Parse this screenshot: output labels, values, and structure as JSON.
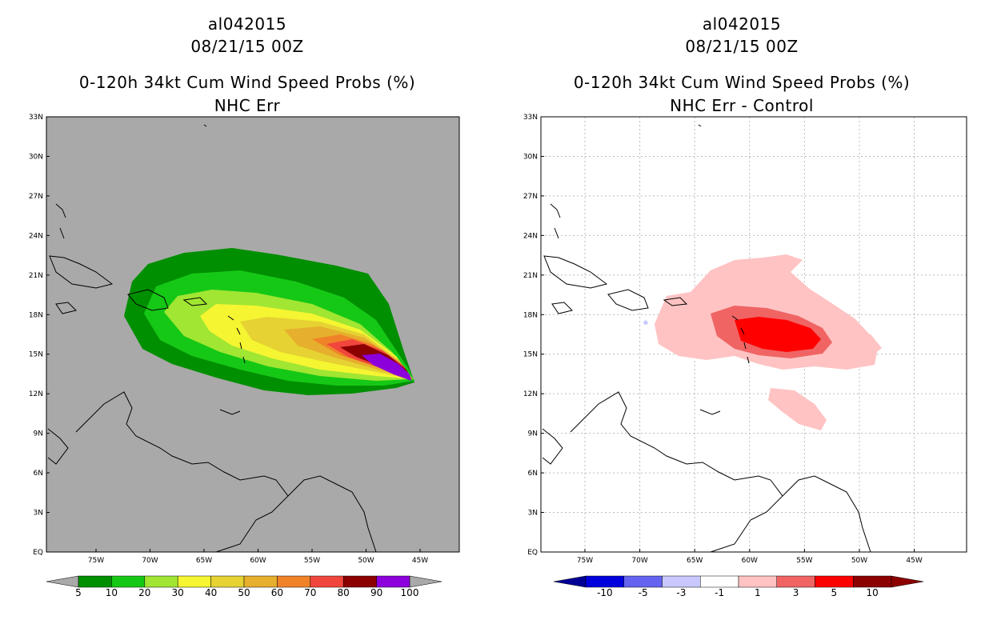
{
  "left": {
    "title_storm": "al042015",
    "title_date": "08/21/15 00Z",
    "title_product": "0-120h 34kt Cum Wind Speed Probs (%)",
    "title_sub": "NHC Err",
    "colorbar": {
      "colors": [
        "#008f00",
        "#16c816",
        "#a0e632",
        "#f5f532",
        "#e6d232",
        "#e6af2d",
        "#f08228",
        "#f0463c",
        "#8c0000",
        "#8c00dc"
      ],
      "labels": [
        "5",
        "10",
        "20",
        "30",
        "40",
        "50",
        "60",
        "70",
        "80",
        "90",
        "100"
      ]
    }
  },
  "right": {
    "title_storm": "al042015",
    "title_date": "08/21/15 00Z",
    "title_product": "0-120h 34kt Cum Wind Speed Probs (%)",
    "title_sub": "NHC Err - Control",
    "colorbar": {
      "colors": [
        "#0000dc",
        "#6464f0",
        "#c8c8ff",
        "#ffffff",
        "#ffc3c3",
        "#f06464",
        "#ff0000",
        "#8c0000"
      ],
      "labels": [
        "-10",
        "-5",
        "-3",
        "-1",
        "1",
        "3",
        "5",
        "10"
      ]
    }
  },
  "axes": {
    "lat_labels": [
      "33N",
      "30N",
      "27N",
      "24N",
      "21N",
      "18N",
      "15N",
      "12N",
      "9N",
      "6N",
      "3N",
      "EQ"
    ],
    "lon_labels": [
      "75W",
      "70W",
      "65W",
      "60W",
      "55W",
      "50W",
      "45W"
    ]
  },
  "colors": {
    "land_bg": "#a9a9a9",
    "frame": "#000000"
  }
}
